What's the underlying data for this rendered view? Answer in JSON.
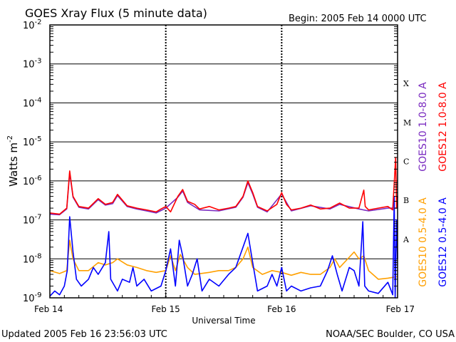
{
  "header": {
    "title": "GOES Xray Flux (5 minute data)",
    "begin": "Begin:  2005 Feb 14 0000 UTC"
  },
  "footer": {
    "updated": "Updated 2005 Feb 16 23:56:03 UTC",
    "credit": "NOAA/SEC Boulder, CO USA"
  },
  "chart_data": {
    "type": "line",
    "title": "GOES Xray Flux (5 minute data)",
    "xlabel": "Universal Time",
    "ylabel": "Watts m",
    "ylabel_sup": "-2",
    "yscale": "log",
    "ylim": [
      1e-09,
      0.01
    ],
    "xlim": [
      0,
      72
    ],
    "x_unit": "hours since Feb 14 0000 UTC",
    "x_ticks": [
      {
        "x": 0,
        "label": "Feb 14"
      },
      {
        "x": 24,
        "label": "Feb 15"
      },
      {
        "x": 48,
        "label": "Feb 16"
      },
      {
        "x": 72,
        "label": "Feb 17"
      }
    ],
    "y_ticks": [
      {
        "exp": -2,
        "base": "10",
        "sup": "-2"
      },
      {
        "exp": -3,
        "base": "10",
        "sup": "-3"
      },
      {
        "exp": -4,
        "base": "10",
        "sup": "-4"
      },
      {
        "exp": -5,
        "base": "10",
        "sup": "-5"
      },
      {
        "exp": -6,
        "base": "10",
        "sup": "-6"
      },
      {
        "exp": -7,
        "base": "10",
        "sup": "-7"
      },
      {
        "exp": -8,
        "base": "10",
        "sup": "-8"
      },
      {
        "exp": -9,
        "base": "10",
        "sup": "-9"
      }
    ],
    "flare_classes": [
      {
        "label": "X",
        "exp": -3.5
      },
      {
        "label": "M",
        "exp": -4.5
      },
      {
        "label": "C",
        "exp": -5.5
      },
      {
        "label": "B",
        "exp": -6.5
      },
      {
        "label": "A",
        "exp": -7.5
      }
    ],
    "grid": {
      "horizontal": true,
      "vertical": "dashed at day boundaries"
    },
    "legend_right": [
      {
        "name": "GOES12 1.0-8.0 A",
        "color": "#ff0000"
      },
      {
        "name": "GOES10 1.0-8.0 A",
        "color": "#7a2bc0"
      },
      {
        "name": "GOES12 0.5-4.0 A",
        "color": "#0000ff"
      },
      {
        "name": "GOES10 0.5-4.0 A",
        "color": "#ffa000"
      }
    ],
    "series": [
      {
        "name": "GOES12 1.0-8.0 A",
        "color": "#ff0000",
        "points": [
          [
            0,
            1.5e-07
          ],
          [
            2,
            1.4e-07
          ],
          [
            3.5,
            2e-07
          ],
          [
            4.1,
            1.8e-06
          ],
          [
            4.8,
            4e-07
          ],
          [
            6,
            2.2e-07
          ],
          [
            8,
            2e-07
          ],
          [
            10,
            3.5e-07
          ],
          [
            11.5,
            2.5e-07
          ],
          [
            13,
            2.8e-07
          ],
          [
            14,
            4.5e-07
          ],
          [
            16,
            2.3e-07
          ],
          [
            18,
            2e-07
          ],
          [
            20,
            1.8e-07
          ],
          [
            22,
            1.6e-07
          ],
          [
            23,
            1.9e-07
          ],
          [
            24,
            2.2e-07
          ],
          [
            25,
            1.6e-07
          ],
          [
            26.5,
            4e-07
          ],
          [
            27.5,
            6e-07
          ],
          [
            28.5,
            3e-07
          ],
          [
            30,
            2.5e-07
          ],
          [
            31,
            1.9e-07
          ],
          [
            33,
            2.2e-07
          ],
          [
            35,
            1.8e-07
          ],
          [
            37,
            2e-07
          ],
          [
            38.5,
            2.2e-07
          ],
          [
            40,
            4e-07
          ],
          [
            41,
            1e-06
          ],
          [
            42,
            5e-07
          ],
          [
            43,
            2.2e-07
          ],
          [
            45,
            1.7e-07
          ],
          [
            47,
            2.5e-07
          ],
          [
            48,
            5e-07
          ],
          [
            49,
            2.5e-07
          ],
          [
            50,
            1.8e-07
          ],
          [
            52,
            2e-07
          ],
          [
            54,
            2.4e-07
          ],
          [
            56,
            1.9e-07
          ],
          [
            58,
            2e-07
          ],
          [
            60,
            2.7e-07
          ],
          [
            62,
            2e-07
          ],
          [
            64,
            2e-07
          ],
          [
            65,
            5.8e-07
          ],
          [
            65.3,
            2.2e-07
          ],
          [
            66,
            1.8e-07
          ],
          [
            68,
            2e-07
          ],
          [
            70,
            2.2e-07
          ],
          [
            71,
            1.8e-07
          ],
          [
            71.6,
            4e-06
          ],
          [
            71.8,
            2e-07
          ],
          [
            72,
            4e-07
          ]
        ]
      },
      {
        "name": "GOES10 1.0-8.0 A",
        "color": "#7a2bc0",
        "points": [
          [
            0,
            1.4e-07
          ],
          [
            2,
            1.35e-07
          ],
          [
            3.5,
            1.9e-07
          ],
          [
            4.1,
            1.6e-06
          ],
          [
            4.8,
            3.8e-07
          ],
          [
            6,
            2.1e-07
          ],
          [
            8,
            1.9e-07
          ],
          [
            10,
            3.3e-07
          ],
          [
            11.5,
            2.4e-07
          ],
          [
            13,
            2.6e-07
          ],
          [
            14,
            4.2e-07
          ],
          [
            16,
            2.2e-07
          ],
          [
            18,
            1.9e-07
          ],
          [
            20,
            1.7e-07
          ],
          [
            22,
            1.5e-07
          ],
          [
            24,
            2e-07
          ],
          [
            26.5,
            3.8e-07
          ],
          [
            27.5,
            5.5e-07
          ],
          [
            28.5,
            2.8e-07
          ],
          [
            31,
            1.8e-07
          ],
          [
            35,
            1.7e-07
          ],
          [
            38.5,
            2.1e-07
          ],
          [
            40,
            3.8e-07
          ],
          [
            41,
            9e-07
          ],
          [
            42,
            4.6e-07
          ],
          [
            43,
            2.1e-07
          ],
          [
            45,
            1.6e-07
          ],
          [
            48,
            4.6e-07
          ],
          [
            50,
            1.7e-07
          ],
          [
            54,
            2.3e-07
          ],
          [
            58,
            1.9e-07
          ],
          [
            60,
            2.5e-07
          ],
          [
            64,
            1.9e-07
          ],
          [
            66,
            1.7e-07
          ],
          [
            70,
            2e-07
          ],
          [
            72,
            2e-07
          ]
        ]
      },
      {
        "name": "GOES12 0.5-4.0 A",
        "color": "#0000ff",
        "points": [
          [
            0,
            1.1e-09
          ],
          [
            1,
            1.5e-09
          ],
          [
            2,
            1.2e-09
          ],
          [
            3,
            2e-09
          ],
          [
            3.6,
            5e-09
          ],
          [
            4.1,
            1.2e-07
          ],
          [
            4.8,
            1.5e-08
          ],
          [
            5.5,
            3e-09
          ],
          [
            6.5,
            2e-09
          ],
          [
            8,
            3e-09
          ],
          [
            9,
            6e-09
          ],
          [
            10,
            4e-09
          ],
          [
            11.5,
            8e-09
          ],
          [
            12.2,
            5e-08
          ],
          [
            12.6,
            3e-09
          ],
          [
            14,
            1.5e-09
          ],
          [
            15,
            3e-09
          ],
          [
            16.5,
            2.5e-09
          ],
          [
            17.2,
            6e-09
          ],
          [
            18,
            2e-09
          ],
          [
            19.5,
            3e-09
          ],
          [
            21,
            1.5e-09
          ],
          [
            23,
            2e-09
          ],
          [
            24,
            5e-09
          ],
          [
            25,
            1.8e-08
          ],
          [
            26,
            2e-09
          ],
          [
            26.8,
            3e-08
          ],
          [
            27.5,
            1.2e-08
          ],
          [
            28.5,
            2e-09
          ],
          [
            29.5,
            4e-09
          ],
          [
            30.5,
            1e-08
          ],
          [
            31.5,
            1.5e-09
          ],
          [
            33,
            3e-09
          ],
          [
            35,
            2e-09
          ],
          [
            37,
            4e-09
          ],
          [
            38.5,
            6e-09
          ],
          [
            40,
            2e-08
          ],
          [
            41,
            4.5e-08
          ],
          [
            42,
            8e-09
          ],
          [
            43,
            1.5e-09
          ],
          [
            45,
            2e-09
          ],
          [
            46,
            4e-09
          ],
          [
            47,
            2e-09
          ],
          [
            48,
            6e-09
          ],
          [
            49,
            1.5e-09
          ],
          [
            50,
            2e-09
          ],
          [
            52,
            1.5e-09
          ],
          [
            54,
            1.8e-09
          ],
          [
            56,
            2e-09
          ],
          [
            57.5,
            5e-09
          ],
          [
            58.5,
            1.2e-08
          ],
          [
            59.5,
            4e-09
          ],
          [
            60.5,
            1.5e-09
          ],
          [
            62,
            6e-09
          ],
          [
            63,
            5e-09
          ],
          [
            64,
            2e-09
          ],
          [
            64.8,
            9e-08
          ],
          [
            65.2,
            2e-09
          ],
          [
            66,
            1.5e-09
          ],
          [
            68,
            1.3e-09
          ],
          [
            70,
            2.5e-09
          ],
          [
            71,
            1.2e-09
          ],
          [
            71.3,
            4e-07
          ],
          [
            71.5,
            1e-09
          ],
          [
            71.8,
            1e-07
          ],
          [
            72,
            1e-08
          ]
        ]
      },
      {
        "name": "GOES10 0.5-4.0 A",
        "color": "#ffa000",
        "points": [
          [
            0,
            5e-09
          ],
          [
            2,
            4.2e-09
          ],
          [
            3.5,
            5e-09
          ],
          [
            4.1,
            3e-08
          ],
          [
            4.8,
            1e-08
          ],
          [
            6,
            5e-09
          ],
          [
            8,
            5e-09
          ],
          [
            10,
            8e-09
          ],
          [
            11.5,
            7e-09
          ],
          [
            13,
            8e-09
          ],
          [
            14,
            1e-08
          ],
          [
            16,
            7e-09
          ],
          [
            18,
            6e-09
          ],
          [
            20,
            5e-09
          ],
          [
            22,
            4.5e-09
          ],
          [
            24,
            5e-09
          ],
          [
            25,
            1.2e-08
          ],
          [
            26,
            5e-09
          ],
          [
            27,
            1.3e-08
          ],
          [
            28.5,
            6e-09
          ],
          [
            30,
            4e-09
          ],
          [
            33,
            4.5e-09
          ],
          [
            35,
            5e-09
          ],
          [
            37,
            5e-09
          ],
          [
            38.5,
            6e-09
          ],
          [
            40,
            1e-08
          ],
          [
            41,
            2e-08
          ],
          [
            42,
            6e-09
          ],
          [
            44,
            4e-09
          ],
          [
            46,
            5e-09
          ],
          [
            48,
            4.5e-09
          ],
          [
            50,
            3.8e-09
          ],
          [
            52,
            4.5e-09
          ],
          [
            54,
            4e-09
          ],
          [
            56,
            4e-09
          ],
          [
            58,
            6e-09
          ],
          [
            59,
            1e-08
          ],
          [
            60,
            6e-09
          ],
          [
            62,
            1.1e-08
          ],
          [
            63,
            1.5e-08
          ],
          [
            64,
            1e-08
          ],
          [
            65,
            1.2e-08
          ],
          [
            66,
            5e-09
          ],
          [
            68,
            3e-09
          ],
          [
            70,
            3.2e-09
          ],
          [
            72,
            3.5e-09
          ]
        ]
      }
    ]
  }
}
